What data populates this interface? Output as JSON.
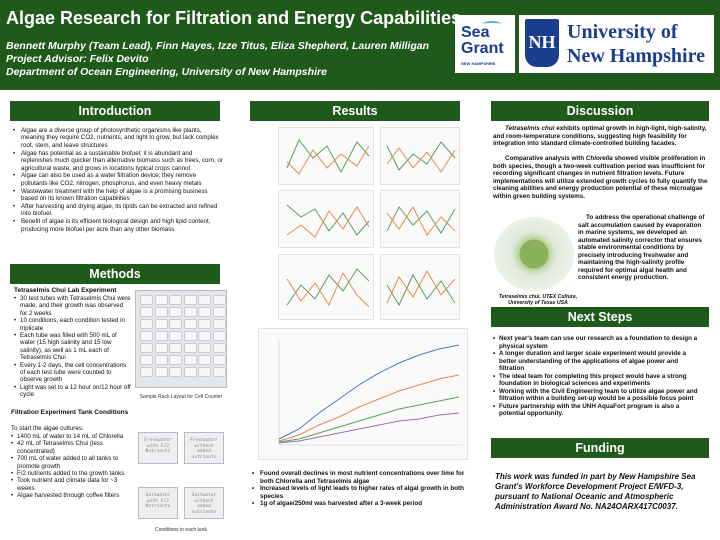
{
  "header": {
    "title": "Algae Research for Filtration and Energy Capabilities",
    "authors": "Bennett Murphy (Team Lead), Finn Hayes, Izze Titus, Eliza Shepherd, Lauren Milligan",
    "advisor": "Project Advisor: Felix Devito",
    "department": "Department of Ocean Engineering, University of New Hampshire",
    "logo_seagrant_line1": "Sea",
    "logo_seagrant_line2": "Grant",
    "logo_seagrant_line3": "NEW HAMPSHIRE",
    "logo_unh_mark": "NH",
    "logo_unh_line1": "University of",
    "logo_unh_line2": "New Hampshire",
    "banner_color": "#1f5a1a"
  },
  "introduction": {
    "heading": "Introduction",
    "bullets": [
      "Algae are a diverse group of photosynthetic organisms like plants, meaning they require CO2, nutrients, and light to grow, but lack complex root, stem, and leave structures",
      "Algae has potential as a sustainable biofuel; it is abundant and replenishes much quicker than alternative biomass such as trees, corn, or agricultural waste, and grows in locations typical crops cannot",
      "Algae can also be used as a water filtration device; they remove pollutants like CO2, nitrogen, phosphorus, and even heavy metals",
      "Wastewater treatment with the help of algae is a promising business based on its known filtration capabilities",
      "After harvesting and drying algae, its lipids can be extracted and refined into biofuel.",
      "Benefit of algae is its efficient biological design and high lipid content, producing more biofuel per acre than any other biomass"
    ]
  },
  "methods": {
    "heading": "Methods",
    "lab_subheading": "Tetraselmis Chui Lab Experiment",
    "lab_bullets": [
      "30 test tubes with Tetraselmis Chui were made, and their growth was observed for 2 weeks",
      "10 conditions, each condition tested in triplicate",
      "Each tube was filled with 500 mL of water (15 high salinity and 15 low salinity), as well as 1 mL each of Tetraselmis Chui",
      "Every 1-2 days, the cell concentrations of each test tube were counted to observe growth",
      "Light was set to a 12 hour on/12 hour off cycle"
    ],
    "rack_caption": "Sample Rack Layout for Cell Counter",
    "tank_subheading": "Filtration Experiment Tank Conditions",
    "tank_intro": "To start the algae cultures:",
    "tank_bullets": [
      "1400 mL of water to 14 mL of Chlorella",
      "42 mL of Tetraselmis Chui (less concentrated)",
      "700 mL of water added to all tanks to promote growth",
      "F/2 nutrients added to the growth tanks",
      "Took nutrient and climate data for ~3 weeks",
      "Algae harvested through coffee filters"
    ],
    "tanks": [
      {
        "line1": "Freshwater",
        "line2": "with F/2",
        "line3": "Nutrients"
      },
      {
        "line1": "Freshwater",
        "line2": "without",
        "line3": "added nutrients"
      },
      {
        "line1": "Saltwater",
        "line2": "with F/2",
        "line3": "Nutrients"
      },
      {
        "line1": "Saltwater",
        "line2": "without",
        "line3": "added nutrients"
      }
    ],
    "tank_caption": "Conditions in each tank"
  },
  "results": {
    "heading": "Results",
    "bullets": [
      "Found overall declines in most nutrient concentrations over time for both Chlorella and Tetraselmis algae",
      "Increased levels of light leads to higher rates of algal growth in both species",
      "1g of algae/250ml was harvested after a 3-week period"
    ]
  },
  "discussion": {
    "heading": "Discussion",
    "p1_species": "Tetraselmis chui",
    "p1_rest": "exhibits optimal growth in high-light, high-salinity, and room-temperature conditions, suggesting high feasibility for integration into standard climate-controlled building facades.",
    "p2_start": "Comparative analysis with",
    "p2_species": "Chlorella",
    "p2_rest": "showed visible proliferation in both species, though a two-week cultivation period was insufficient for recording significant changes in nutrient filtration levels. Future implementations will utilize extended growth cycles to fully quantify the cleaning abilities and energy production potential of these microalgae within green building systems.",
    "p3": "To address the operational challenge of salt accumulation caused by evaporation in marine systems, we developed an automated salinity corrector that ensures stable environmental conditions by precisely introducing freshwater and maintaining the high-salinity profile required for optimal algal health and consistent energy production.",
    "image_caption": "Tetraselmis chui, UTEX Culture, University of Texas USA"
  },
  "next_steps": {
    "heading": "Next Steps",
    "bullets": [
      "Next year's team can use our research as a foundation to design a physical system",
      "A longer duration and larger scale experiment would provide a better understanding of the applications of algae power and filtration",
      "The ideal team for completing this project would have a strong foundation in biological sciences and experiments",
      "Working with the Civil Engineering team to utilize algae power and filtration within a building set-up would be a possible focus point",
      "Future partnership with the UNH AquaFort program is also a potential opportunity."
    ]
  },
  "funding": {
    "heading": "Funding",
    "text": "This work was funded in part by New Hampshire Sea Grant's Workforce Development Project E/WFD-3, pursuant to National Oceanic and Atmospheric Administration Award No. NA24OARX417C0037."
  },
  "colors": {
    "header_green": "#1f5a1a",
    "series_green": "#5aa05a",
    "series_orange": "#e88a4a",
    "series_blue": "#4a78c0"
  }
}
